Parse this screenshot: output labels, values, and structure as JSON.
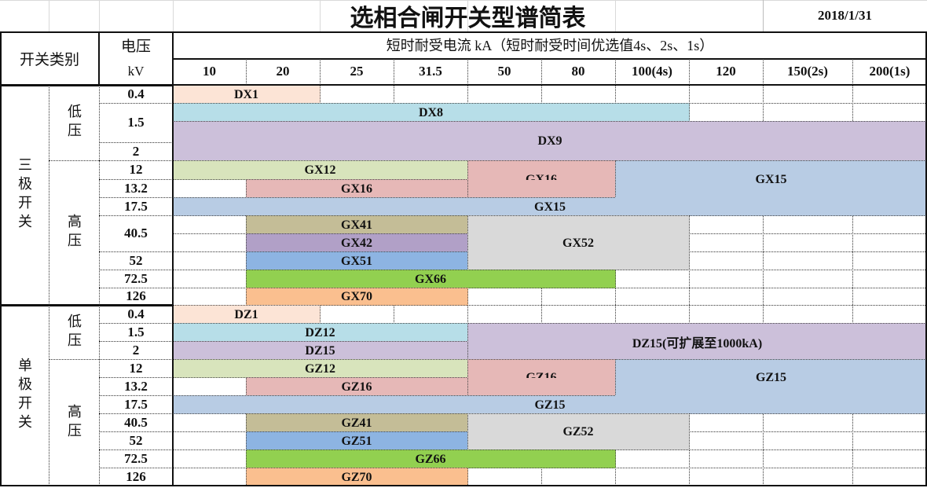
{
  "title": "选相合闸开关型谱简表",
  "date": "2018/1/31",
  "header": {
    "switch_type": "开关类别",
    "voltage": "电压",
    "voltage_unit": "kV",
    "current_title": "短时耐受电流 kA（短时耐受时间优选值4s、2s、1s）",
    "current_columns": [
      "10",
      "20",
      "25",
      "31.5",
      "50",
      "80",
      "100(4s)",
      "120",
      "150(2s)",
      "200(1s)"
    ]
  },
  "sections": [
    {
      "name": "三极开关",
      "groups": [
        {
          "name": "低压",
          "voltages": [
            "0.4",
            "1.5",
            "2"
          ]
        },
        {
          "name": "高压",
          "voltages": [
            "12",
            "13.2",
            "17.5",
            "40.5",
            "52",
            "72.5",
            "126"
          ]
        }
      ]
    },
    {
      "name": "单极开关",
      "groups": [
        {
          "name": "低压",
          "voltages": [
            "0.4",
            "1.5",
            "2"
          ]
        },
        {
          "name": "高压",
          "voltages": [
            "12",
            "13.2",
            "17.5",
            "40.5",
            "52",
            "72.5",
            "126"
          ]
        }
      ]
    }
  ],
  "models": [
    {
      "label": "DX1",
      "color": "#fce4d6",
      "voltage": "0.4",
      "ka": "10–20"
    },
    {
      "label": "DX8",
      "color": "#b7dee8",
      "voltage": "1.5",
      "ka": "10–100(4s)"
    },
    {
      "label": "DX9",
      "color": "#ccc0da",
      "voltage": "1.5–2",
      "ka": "10–200(1s)"
    },
    {
      "label": "GX12",
      "color": "#d8e4bc",
      "voltage": "12",
      "ka": "10–31.5"
    },
    {
      "label": "GX16",
      "color": "#e6b8b7",
      "voltage": "12–13.2",
      "ka": "20–80"
    },
    {
      "label": "GX15",
      "color": "#b8cce4",
      "voltage": "12–17.5",
      "ka": "10–200(1s)"
    },
    {
      "label": "GX41",
      "color": "#c4bd97",
      "voltage": "40.5",
      "ka": "20–31.5"
    },
    {
      "label": "GX42",
      "color": "#b1a0c7",
      "voltage": "40.5",
      "ka": "20–31.5"
    },
    {
      "label": "GX51",
      "color": "#8db4e2",
      "voltage": "52",
      "ka": "20–31.5"
    },
    {
      "label": "GX52",
      "color": "#d9d9d9",
      "voltage": "40.5–52",
      "ka": "50–100(4s)"
    },
    {
      "label": "GX66",
      "color": "#92d050",
      "voltage": "72.5",
      "ka": "20–80"
    },
    {
      "label": "GX70",
      "color": "#fabf8f",
      "voltage": "126",
      "ka": "20–31.5"
    },
    {
      "label": "DZ1",
      "color": "#fce4d6",
      "voltage": "0.4",
      "ka": "10–20"
    },
    {
      "label": "DZ12",
      "color": "#b7dee8",
      "voltage": "1.5",
      "ka": "10–31.5"
    },
    {
      "label": "DZ15",
      "color": "#ccc0da",
      "voltage": "2",
      "ka": "10–31.5"
    },
    {
      "label": "DZ15(可扩展至1000kA)",
      "color": "#ccc0da",
      "voltage": "1.5–2",
      "ka": "50–200(1s)"
    },
    {
      "label": "GZ12",
      "color": "#d8e4bc",
      "voltage": "12",
      "ka": "10–31.5"
    },
    {
      "label": "GZ16",
      "color": "#e6b8b7",
      "voltage": "12–13.2",
      "ka": "20–80"
    },
    {
      "label": "GZ15",
      "color": "#b8cce4",
      "voltage": "12–17.5",
      "ka": "10–200(1s)"
    },
    {
      "label": "GZ41",
      "color": "#c4bd97",
      "voltage": "40.5",
      "ka": "20–31.5"
    },
    {
      "label": "GZ51",
      "color": "#8db4e2",
      "voltage": "52",
      "ka": "20–31.5"
    },
    {
      "label": "GZ52",
      "color": "#d9d9d9",
      "voltage": "40.5–52",
      "ka": "50–100(4s)"
    },
    {
      "label": "GZ66",
      "color": "#92d050",
      "voltage": "72.5",
      "ka": "20–80"
    },
    {
      "label": "GZ70",
      "color": "#fabf8f",
      "voltage": "126",
      "ka": "20–31.5"
    }
  ]
}
